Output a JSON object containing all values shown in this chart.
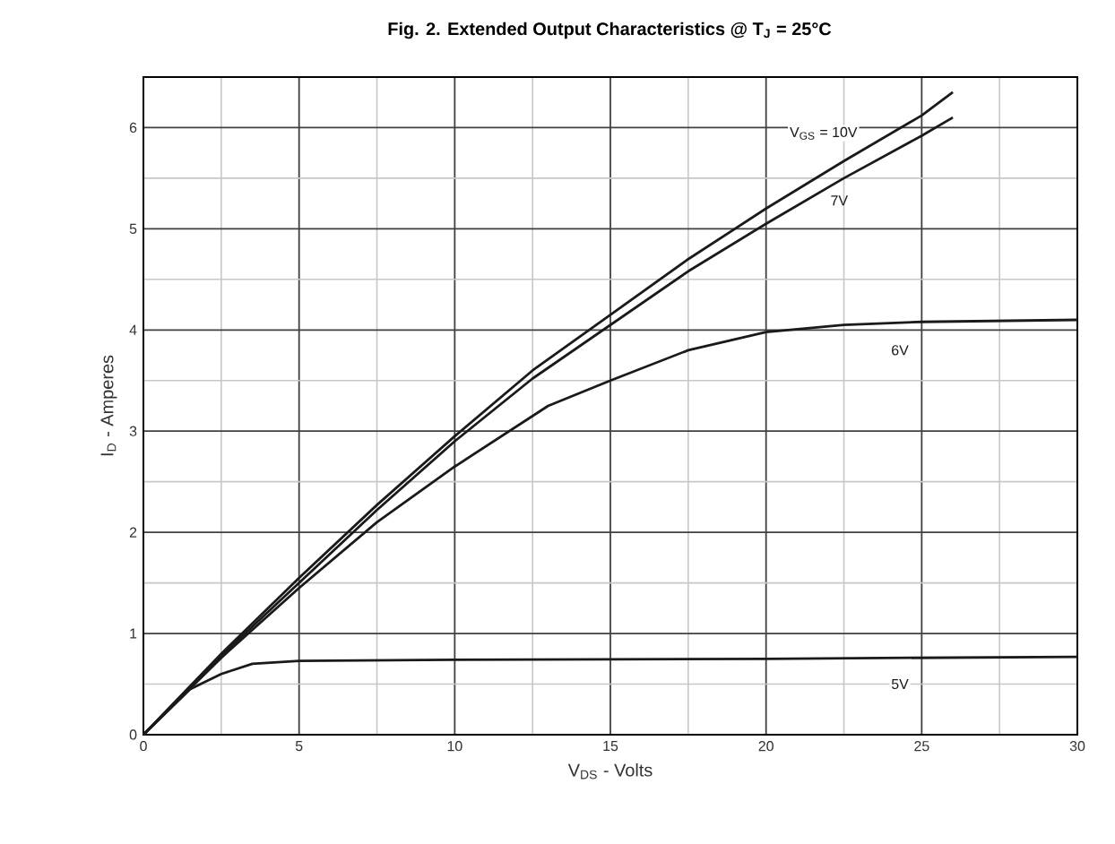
{
  "chart_data": {
    "type": "line",
    "title": "Fig. 2. Extended Output Characteristics @ T$_{J}$ = 25°C",
    "xlabel": "V$_{DS}$ - Volts",
    "ylabel": "I$_{D}$ - Amperes",
    "xlim": [
      0,
      30
    ],
    "ylim": [
      0,
      6.5
    ],
    "xticks": [
      0,
      5,
      10,
      15,
      20,
      25,
      30
    ],
    "yticks": [
      0,
      1,
      2,
      3,
      4,
      5,
      6
    ],
    "grid": true,
    "legend": false,
    "marker": "none",
    "line_style": "solid",
    "series": [
      {
        "name": "V$_{GS}$ = 10V",
        "color": "#1a1a1a",
        "x": [
          0,
          2.5,
          5,
          7.5,
          10,
          12.5,
          15,
          17.5,
          20,
          22.5,
          25,
          26
        ],
        "values": [
          0,
          0.8,
          1.55,
          2.27,
          2.95,
          3.6,
          4.15,
          4.7,
          5.2,
          5.67,
          6.12,
          6.35
        ]
      },
      {
        "name": "7V",
        "color": "#1a1a1a",
        "x": [
          0,
          2.5,
          5,
          7.5,
          10,
          12.5,
          15,
          17.5,
          20,
          22.5,
          25,
          26
        ],
        "values": [
          0,
          0.78,
          1.5,
          2.22,
          2.9,
          3.52,
          4.05,
          4.58,
          5.05,
          5.5,
          5.92,
          6.1
        ]
      },
      {
        "name": "6V",
        "color": "#1a1a1a",
        "x": [
          0,
          2.5,
          5,
          7.5,
          10,
          13,
          15,
          17.5,
          20,
          22.5,
          25,
          30
        ],
        "values": [
          0,
          0.76,
          1.45,
          2.1,
          2.65,
          3.25,
          3.5,
          3.8,
          3.98,
          4.05,
          4.08,
          4.1
        ]
      },
      {
        "name": "5V",
        "color": "#1a1a1a",
        "x": [
          0,
          1.5,
          2.5,
          3.5,
          5,
          10,
          20,
          30
        ],
        "values": [
          0,
          0.45,
          0.6,
          0.7,
          0.73,
          0.74,
          0.75,
          0.77
        ]
      }
    ]
  }
}
